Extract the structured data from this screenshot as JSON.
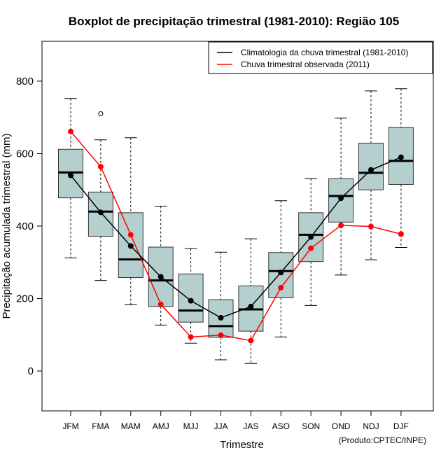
{
  "chart_data": {
    "type": "boxplot",
    "title": "Boxplot de precipitação trimestral (1981-2010): Região 105",
    "xlabel": "Trimestre",
    "ylabel": "Precipitação acumulada trimestral (mm)",
    "credit": "(Produto:CPTEC/INPE)",
    "ylim": [
      -110,
      910
    ],
    "yticks": [
      0,
      200,
      400,
      600,
      800
    ],
    "yticks_labels": [
      "0",
      "200",
      "400",
      "600",
      "800"
    ],
    "categories": [
      "JFM",
      "FMA",
      "MAM",
      "AMJ",
      "MJJ",
      "JJA",
      "JAS",
      "ASO",
      "SON",
      "OND",
      "NDJ",
      "DJF"
    ],
    "boxes": [
      {
        "whisker_low": 312,
        "q1": 478,
        "median": 548,
        "q3": 612,
        "whisker_high": 752,
        "outliers": []
      },
      {
        "whisker_low": 250,
        "q1": 372,
        "median": 440,
        "q3": 494,
        "whisker_high": 638,
        "outliers": [
          710
        ]
      },
      {
        "whisker_low": 183,
        "q1": 258,
        "median": 308,
        "q3": 437,
        "whisker_high": 644,
        "outliers": []
      },
      {
        "whisker_low": 127,
        "q1": 178,
        "median": 250,
        "q3": 342,
        "whisker_high": 455,
        "outliers": []
      },
      {
        "whisker_low": 77,
        "q1": 135,
        "median": 167,
        "q3": 268,
        "whisker_high": 338,
        "outliers": []
      },
      {
        "whisker_low": 31,
        "q1": 93,
        "median": 124,
        "q3": 197,
        "whisker_high": 328,
        "outliers": []
      },
      {
        "whisker_low": 21,
        "q1": 110,
        "median": 170,
        "q3": 235,
        "whisker_high": 365,
        "outliers": []
      },
      {
        "whisker_low": 94,
        "q1": 202,
        "median": 276,
        "q3": 327,
        "whisker_high": 470,
        "outliers": []
      },
      {
        "whisker_low": 181,
        "q1": 302,
        "median": 376,
        "q3": 437,
        "whisker_high": 531,
        "outliers": []
      },
      {
        "whisker_low": 265,
        "q1": 411,
        "median": 483,
        "q3": 531,
        "whisker_high": 698,
        "outliers": []
      },
      {
        "whisker_low": 307,
        "q1": 500,
        "median": 547,
        "q3": 629,
        "whisker_high": 773,
        "outliers": []
      },
      {
        "whisker_low": 341,
        "q1": 515,
        "median": 580,
        "q3": 672,
        "whisker_high": 779,
        "outliers": []
      }
    ],
    "series": [
      {
        "name": "Climatologia da chuva trimestral (1981-2010)",
        "color": "#000000",
        "values": [
          540,
          438,
          345,
          260,
          194,
          147,
          178,
          272,
          370,
          477,
          555,
          590
        ]
      },
      {
        "name": "Chuva trimestral observada (2011)",
        "color": "#ff0000",
        "values": [
          661,
          564,
          376,
          184,
          94,
          99,
          84,
          230,
          339,
          402,
          399,
          378
        ]
      }
    ],
    "box_fill": "#b5cfcf",
    "legend_position": "top-right",
    "grid": false
  }
}
